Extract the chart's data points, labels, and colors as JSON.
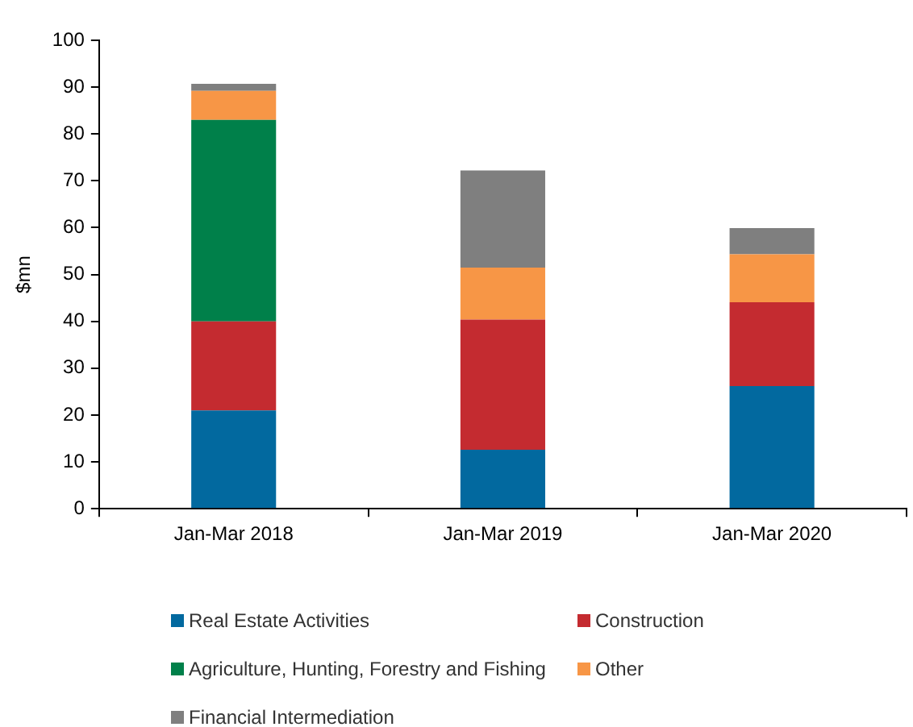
{
  "chart_data": {
    "type": "bar",
    "stacked": true,
    "ylabel": "$mn",
    "categories": [
      "Jan-Mar 2018",
      "Jan-Mar 2019",
      "Jan-Mar 2020"
    ],
    "series": [
      {
        "name": "Real Estate Activities",
        "color": "#02699f",
        "values": [
          21,
          12.6,
          26.2
        ]
      },
      {
        "name": "Construction",
        "color": "#c42b30",
        "values": [
          19,
          27.8,
          17.9
        ]
      },
      {
        "name": "Agriculture, Hunting, Forestry and Fishing",
        "color": "#00804a",
        "values": [
          43,
          0,
          0
        ]
      },
      {
        "name": "Other",
        "color": "#f79646",
        "values": [
          6.2,
          11.1,
          10.2
        ]
      },
      {
        "name": "Financial Intermediation",
        "color": "#7f7f7f",
        "values": [
          1.5,
          20.7,
          5.6
        ]
      }
    ],
    "ylim": [
      0,
      100
    ],
    "yticks": [
      0,
      10,
      20,
      30,
      40,
      50,
      60,
      70,
      80,
      90,
      100
    ],
    "grid": false,
    "legend": "bottom"
  }
}
